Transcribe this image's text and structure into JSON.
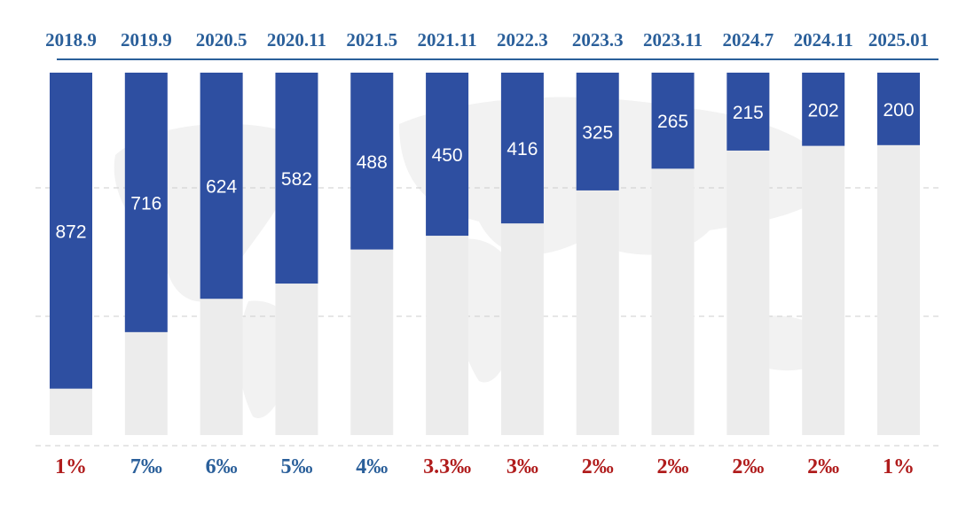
{
  "chart_data": {
    "type": "bar",
    "categories": [
      "2018.9",
      "2019.9",
      "2020.5",
      "2020.11",
      "2021.5",
      "2021.11",
      "2022.3",
      "2023.3",
      "2023.11",
      "2024.7",
      "2024.11",
      "2025.01"
    ],
    "values": [
      872,
      716,
      624,
      582,
      488,
      450,
      416,
      325,
      265,
      215,
      202,
      200
    ],
    "rates": [
      "1%",
      "7‰",
      "6‰",
      "5‰",
      "4‰",
      "3.3‰",
      "3‰",
      "2‰",
      "2‰",
      "2‰",
      "2‰",
      "1%"
    ],
    "rate_colors": [
      "#b01c1c",
      "#2a5f9a",
      "#2a5f9a",
      "#2a5f9a",
      "#2a5f9a",
      "#b01c1c",
      "#b01c1c",
      "#b01c1c",
      "#b01c1c",
      "#b01c1c",
      "#b01c1c",
      "#b01c1c"
    ],
    "ylim": [
      0,
      1000
    ],
    "title": "",
    "xlabel": "",
    "ylabel": "",
    "grid": true,
    "legend": "none",
    "colors": {
      "bar": "#2e4fa1",
      "track": "#ececec",
      "axis_line": "#2a5f9a",
      "grid": "#d6d6d6"
    }
  }
}
